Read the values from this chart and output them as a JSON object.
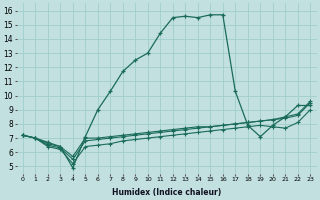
{
  "xlabel": "Humidex (Indice chaleur)",
  "background_color": "#c2e0e0",
  "grid_color": "#9fcece",
  "line_color": "#1a6b5a",
  "xlim": [
    -0.5,
    23.5
  ],
  "ylim": [
    4.5,
    16.5
  ],
  "xticks": [
    0,
    1,
    2,
    3,
    4,
    5,
    6,
    7,
    8,
    9,
    10,
    11,
    12,
    13,
    14,
    15,
    16,
    17,
    18,
    19,
    20,
    21,
    22,
    23
  ],
  "yticks": [
    5,
    6,
    7,
    8,
    9,
    10,
    11,
    12,
    13,
    14,
    15,
    16
  ],
  "line1_x": [
    0,
    1,
    2,
    3,
    4,
    5,
    6,
    7,
    8,
    9,
    10,
    11,
    12,
    13,
    14,
    15,
    16,
    17,
    18,
    19,
    20,
    21,
    22,
    23
  ],
  "line1_y": [
    7.2,
    7.0,
    6.7,
    6.4,
    4.9,
    7.1,
    9.0,
    10.3,
    11.7,
    12.5,
    13.0,
    14.4,
    15.5,
    15.6,
    15.5,
    15.7,
    15.7,
    10.3,
    7.9,
    7.1,
    7.9,
    8.5,
    9.3,
    9.3
  ],
  "line2_x": [
    0,
    1,
    2,
    3,
    4,
    5,
    6,
    7,
    8,
    9,
    10,
    11,
    12,
    13,
    14,
    15,
    16,
    17,
    18,
    19,
    20,
    21,
    22,
    23
  ],
  "line2_y": [
    7.2,
    7.0,
    6.5,
    6.3,
    5.5,
    6.8,
    6.9,
    7.0,
    7.1,
    7.2,
    7.3,
    7.4,
    7.5,
    7.6,
    7.7,
    7.8,
    7.9,
    8.0,
    8.1,
    8.2,
    8.3,
    8.4,
    8.6,
    9.5
  ],
  "line3_x": [
    0,
    1,
    2,
    3,
    4,
    5,
    6,
    7,
    8,
    9,
    10,
    11,
    12,
    13,
    14,
    15,
    16,
    17,
    18,
    19,
    20,
    21,
    22,
    23
  ],
  "line3_y": [
    7.2,
    7.0,
    6.4,
    6.2,
    5.2,
    6.4,
    6.5,
    6.6,
    6.8,
    6.9,
    7.0,
    7.1,
    7.2,
    7.3,
    7.4,
    7.5,
    7.6,
    7.7,
    7.8,
    7.9,
    7.8,
    7.7,
    8.1,
    9.0
  ],
  "line4_x": [
    0,
    1,
    2,
    3,
    4,
    5,
    6,
    7,
    8,
    9,
    10,
    11,
    12,
    13,
    14,
    15,
    16,
    17,
    18,
    19,
    20,
    21,
    22,
    23
  ],
  "line4_y": [
    7.2,
    7.0,
    6.6,
    6.4,
    5.7,
    7.0,
    7.0,
    7.1,
    7.2,
    7.3,
    7.4,
    7.5,
    7.6,
    7.7,
    7.8,
    7.8,
    7.9,
    8.0,
    8.1,
    8.2,
    8.3,
    8.5,
    8.7,
    9.6
  ]
}
